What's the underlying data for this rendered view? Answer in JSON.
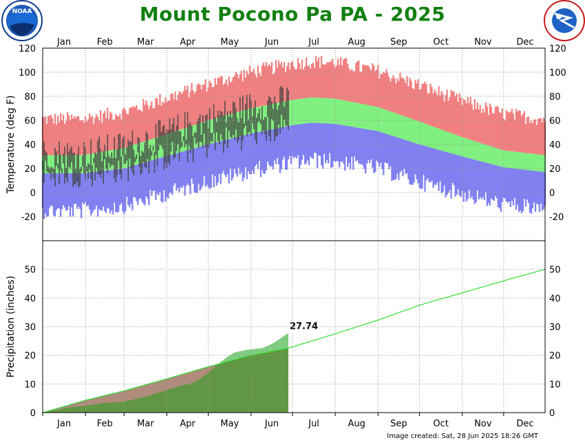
{
  "title": "Mount Pocono Pa PA - 2025",
  "footer": "Image created: Sat, 28 Jun 2025 18:26 GMT",
  "chart_data": [
    {
      "type": "bar",
      "panel": "temperature",
      "ylabel": "Temperature (deg F)",
      "ylim": [
        -40,
        120
      ],
      "yticks": [
        -20,
        0,
        20,
        40,
        60,
        80,
        100,
        120
      ],
      "months": [
        "Jan",
        "Feb",
        "Mar",
        "Apr",
        "May",
        "Jun",
        "Jul",
        "Aug",
        "Sep",
        "Oct",
        "Nov",
        "Dec"
      ],
      "grid": true,
      "series": [
        {
          "key": "record",
          "color": "#f08080"
        },
        {
          "key": "normal",
          "color": "#80f080"
        },
        {
          "key": "recordlow",
          "color": "#8080f0"
        },
        {
          "key": "observed",
          "color": "#404040"
        }
      ],
      "normal_high_anchors": {
        "day": [
          1,
          30,
          60,
          90,
          121,
          152,
          182,
          196,
          213,
          244,
          274,
          305,
          335,
          365
        ],
        "value": [
          31,
          31,
          37,
          48,
          60,
          70,
          77,
          79,
          78,
          71,
          59,
          46,
          35,
          31
        ]
      },
      "normal_low_anchors": {
        "day": [
          1,
          30,
          60,
          90,
          121,
          152,
          182,
          196,
          213,
          244,
          274,
          305,
          335,
          365
        ],
        "value": [
          16,
          16,
          20,
          30,
          40,
          49,
          56,
          58,
          57,
          51,
          40,
          30,
          21,
          17
        ]
      },
      "observed_note": "daily observed high/low bars through Jun 28"
    },
    {
      "type": "area",
      "panel": "precipitation",
      "ylabel": "Precipitation (inches)",
      "ylim": [
        0,
        60
      ],
      "yticks": [
        0,
        10,
        20,
        30,
        40,
        50
      ],
      "grid": true,
      "annotation": "27.74",
      "normal_cumulative": {
        "day": [
          1,
          32,
          60,
          91,
          121,
          152,
          179,
          213,
          244,
          274,
          305,
          335,
          365
        ],
        "value": [
          0,
          4.3,
          7.6,
          11.8,
          16.0,
          20.0,
          22.5,
          27.5,
          32.3,
          37.5,
          41.8,
          46.0,
          50.0
        ]
      },
      "observed_cumulative": {
        "day": [
          1,
          10,
          20,
          32,
          45,
          60,
          75,
          85,
          95,
          110,
          120,
          126,
          135,
          140,
          150,
          160,
          165,
          170,
          175,
          179
        ],
        "value": [
          0,
          0.8,
          1.8,
          2.4,
          3.3,
          3.8,
          5.5,
          7.0,
          8.5,
          10.5,
          13.4,
          16.2,
          19.5,
          21.0,
          22.0,
          22.5,
          23.5,
          24.8,
          26.5,
          27.74
        ]
      }
    }
  ]
}
